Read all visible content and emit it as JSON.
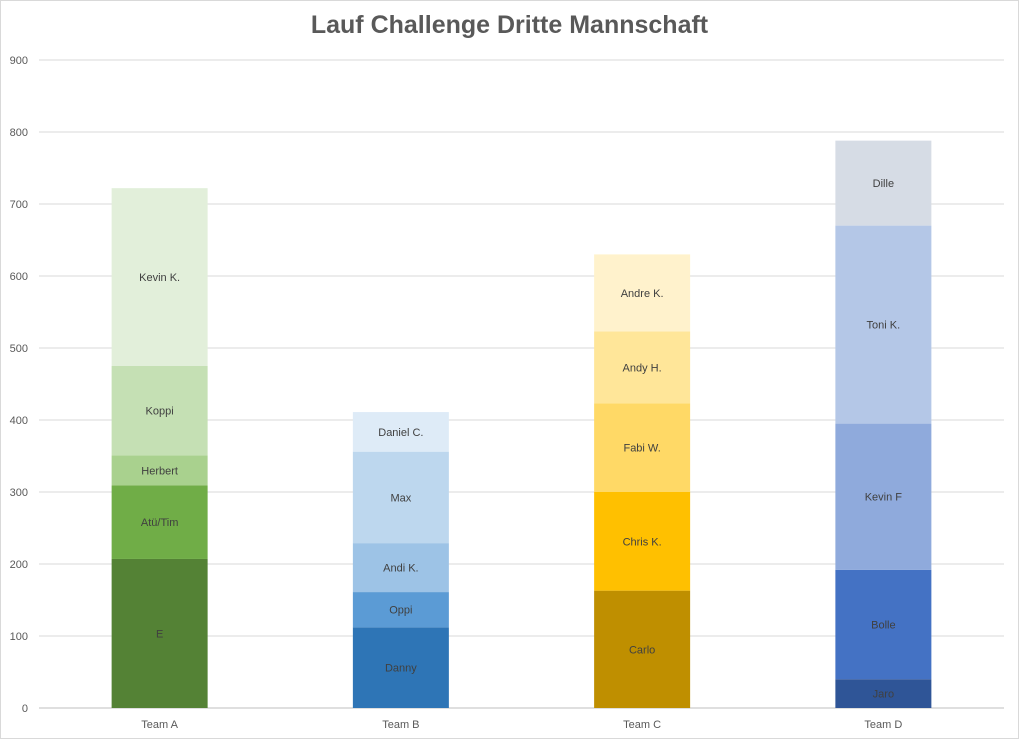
{
  "chart_data": {
    "type": "bar",
    "stacked": true,
    "title": "Lauf Challenge Dritte Mannschaft",
    "xlabel": "",
    "ylabel": "",
    "ylim": [
      0,
      900
    ],
    "yticks": [
      0,
      100,
      200,
      300,
      400,
      500,
      600,
      700,
      800,
      900
    ],
    "grid": true,
    "legend": "none",
    "categories": [
      "Team A",
      "Team B",
      "Team C",
      "Team D"
    ],
    "bars": [
      {
        "category": "Team A",
        "segments": [
          {
            "label": "E",
            "value": 207,
            "color": "#548235"
          },
          {
            "label": "Atü/Tim",
            "value": 102,
            "color": "#70ad47"
          },
          {
            "label": "Herbert",
            "value": 42,
            "color": "#a9d18e"
          },
          {
            "label": "Koppi",
            "value": 124,
            "color": "#c5e0b4"
          },
          {
            "label": "Kevin K.",
            "value": 247,
            "color": "#e2efda"
          }
        ]
      },
      {
        "category": "Team B",
        "segments": [
          {
            "label": "Danny",
            "value": 112,
            "color": "#2e75b6"
          },
          {
            "label": "Oppi",
            "value": 49,
            "color": "#5b9bd5"
          },
          {
            "label": "Andi K.",
            "value": 68,
            "color": "#9dc3e6"
          },
          {
            "label": "Max",
            "value": 127,
            "color": "#bdd7ee"
          },
          {
            "label": "Daniel C.",
            "value": 55,
            "color": "#deebf7"
          }
        ]
      },
      {
        "category": "Team C",
        "segments": [
          {
            "label": "Carlo",
            "value": 163,
            "color": "#bf8f00"
          },
          {
            "label": "Chris K.",
            "value": 137,
            "color": "#ffc000"
          },
          {
            "label": "Fabi W.",
            "value": 123,
            "color": "#ffd966"
          },
          {
            "label": "Andy H.",
            "value": 100,
            "color": "#ffe699"
          },
          {
            "label": "Andre K.",
            "value": 107,
            "color": "#fff2cc"
          }
        ]
      },
      {
        "category": "Team D",
        "segments": [
          {
            "label": "Jaro",
            "value": 40,
            "color": "#2f5597"
          },
          {
            "label": "Bolle",
            "value": 152,
            "color": "#4472c4"
          },
          {
            "label": "Kevin F",
            "value": 203,
            "color": "#8faadc"
          },
          {
            "label": "Toni K.",
            "value": 275,
            "color": "#b4c7e7"
          },
          {
            "label": "Dille",
            "value": 118,
            "color": "#d6dce5"
          }
        ]
      }
    ]
  }
}
